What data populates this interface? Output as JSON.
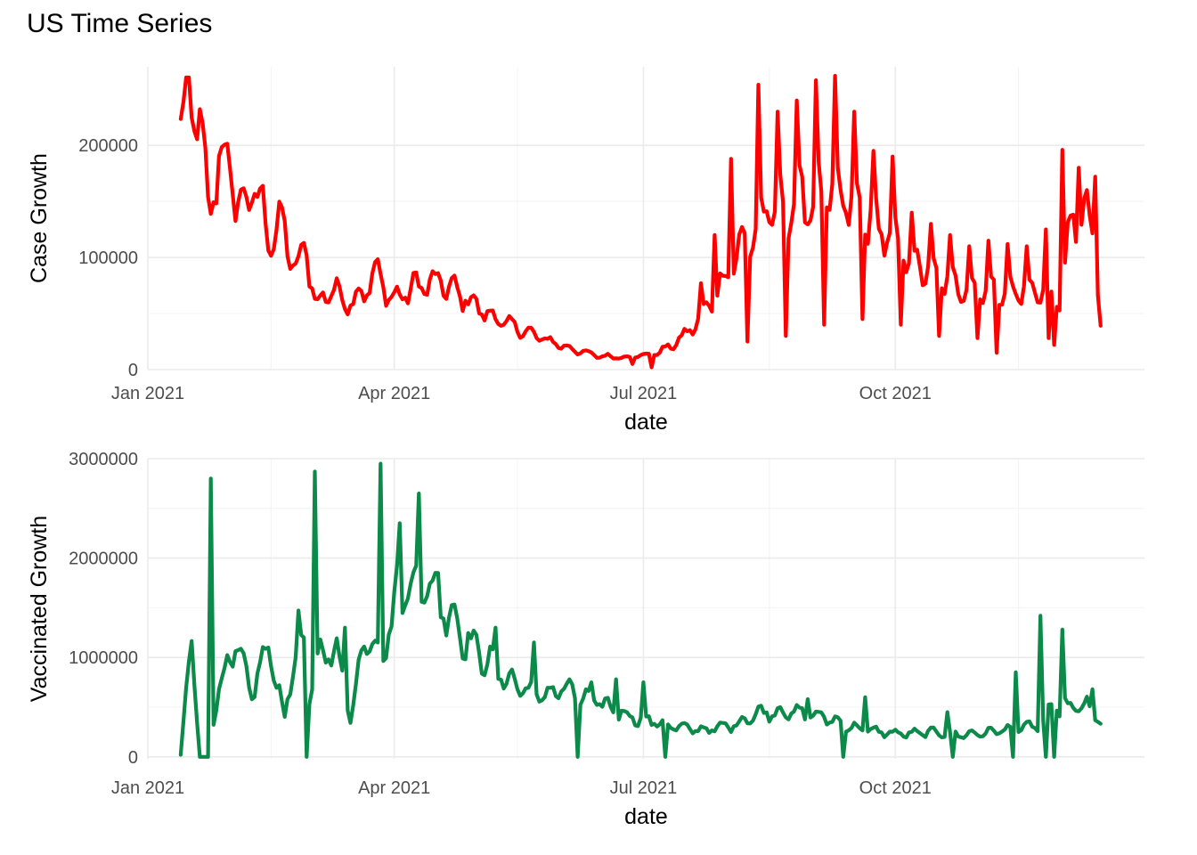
{
  "title": "US Time Series",
  "colors": {
    "cases": "#ff0000",
    "vaccinated": "#0b8a4a",
    "grid": "#ebebeb"
  },
  "chart_data": [
    {
      "type": "line",
      "name": "cases",
      "xlabel": "date",
      "ylabel": "Case Growth",
      "x_start": "2021-01-13",
      "x_end": "2021-12-15",
      "xlim": [
        "2021-01-01",
        "2021-12-31"
      ],
      "x_ticks": [
        "Jan 2021",
        "Apr 2021",
        "Jul 2021",
        "Oct 2021"
      ],
      "ylim": [
        0,
        270000
      ],
      "y_ticks": [
        0,
        100000,
        200000
      ],
      "y_tick_labels": [
        "0",
        "100000",
        "200000"
      ],
      "grid": true,
      "anchors": [
        [
          "2021-01-13",
          218000
        ],
        [
          "2021-01-17",
          232000
        ],
        [
          "2021-01-19",
          245000
        ],
        [
          "2021-01-23",
          140000
        ],
        [
          "2021-01-27",
          188000
        ],
        [
          "2021-01-31",
          180000
        ],
        [
          "2021-02-04",
          140000
        ],
        [
          "2021-02-09",
          165000
        ],
        [
          "2021-02-14",
          120000
        ],
        [
          "2021-02-19",
          128000
        ],
        [
          "2021-02-24",
          90000
        ],
        [
          "2021-02-28",
          105000
        ],
        [
          "2021-03-04",
          55000
        ],
        [
          "2021-03-09",
          75000
        ],
        [
          "2021-03-14",
          60000
        ],
        [
          "2021-03-21",
          68000
        ],
        [
          "2021-03-25",
          86000
        ],
        [
          "2021-04-01",
          62000
        ],
        [
          "2021-04-09",
          75000
        ],
        [
          "2021-04-18",
          78000
        ],
        [
          "2021-04-27",
          64000
        ],
        [
          "2021-05-06",
          48000
        ],
        [
          "2021-05-15",
          38000
        ],
        [
          "2021-05-25",
          28000
        ],
        [
          "2021-06-05",
          18000
        ],
        [
          "2021-06-15",
          12000
        ],
        [
          "2021-06-25",
          11000
        ],
        [
          "2021-07-05",
          14000
        ],
        [
          "2021-07-12",
          22000
        ],
        [
          "2021-07-20",
          40000
        ],
        [
          "2021-07-28",
          70000
        ],
        [
          "2021-08-06",
          110000
        ],
        [
          "2021-08-15",
          140000
        ],
        [
          "2021-08-25",
          150000
        ],
        [
          "2021-09-05",
          155000
        ],
        [
          "2021-09-14",
          150000
        ],
        [
          "2021-09-24",
          130000
        ],
        [
          "2021-10-04",
          105000
        ],
        [
          "2021-10-14",
          85000
        ],
        [
          "2021-10-24",
          75000
        ],
        [
          "2021-11-03",
          72000
        ],
        [
          "2021-11-13",
          70000
        ],
        [
          "2021-11-23",
          72000
        ],
        [
          "2021-11-30",
          60000
        ],
        [
          "2021-12-05",
          140000
        ],
        [
          "2021-12-12",
          130000
        ],
        [
          "2021-12-15",
          38000
        ]
      ],
      "peaks": [
        [
          "2021-03-24",
          86000
        ],
        [
          "2021-07-22",
          77000
        ],
        [
          "2021-07-27",
          120000
        ],
        [
          "2021-08-02",
          188000
        ],
        [
          "2021-08-12",
          254000
        ],
        [
          "2021-08-19",
          230000
        ],
        [
          "2021-08-26",
          240000
        ],
        [
          "2021-09-02",
          258000
        ],
        [
          "2021-09-09",
          262000
        ],
        [
          "2021-09-16",
          230000
        ],
        [
          "2021-09-23",
          195000
        ],
        [
          "2021-09-30",
          190000
        ],
        [
          "2021-10-07",
          140000
        ],
        [
          "2021-10-14",
          130000
        ],
        [
          "2021-10-21",
          120000
        ],
        [
          "2021-10-28",
          110000
        ],
        [
          "2021-11-04",
          115000
        ],
        [
          "2021-11-11",
          112000
        ],
        [
          "2021-11-18",
          110000
        ],
        [
          "2021-11-25",
          125000
        ],
        [
          "2021-12-01",
          196000
        ],
        [
          "2021-12-07",
          180000
        ],
        [
          "2021-12-13",
          172000
        ]
      ],
      "troughs": [
        [
          "2021-06-27",
          5000
        ],
        [
          "2021-07-04",
          2000
        ],
        [
          "2021-08-08",
          25000
        ],
        [
          "2021-08-22",
          30000
        ],
        [
          "2021-09-05",
          40000
        ],
        [
          "2021-09-19",
          45000
        ],
        [
          "2021-10-03",
          40000
        ],
        [
          "2021-10-17",
          30000
        ],
        [
          "2021-10-31",
          28000
        ],
        [
          "2021-11-07",
          15000
        ],
        [
          "2021-11-26",
          28000
        ],
        [
          "2021-11-28",
          22000
        ]
      ]
    },
    {
      "type": "line",
      "name": "vaccinated",
      "xlabel": "date",
      "ylabel": "Vaccinated Growth",
      "x_start": "2021-01-13",
      "x_end": "2021-12-15",
      "xlim": [
        "2021-01-01",
        "2021-12-31"
      ],
      "x_ticks": [
        "Jan 2021",
        "Apr 2021",
        "Jul 2021",
        "Oct 2021"
      ],
      "ylim": [
        -20000,
        3000000
      ],
      "y_ticks": [
        0,
        1000000,
        2000000,
        3000000
      ],
      "y_tick_labels": [
        "0",
        "1000000",
        "2000000",
        "3000000"
      ],
      "grid": true,
      "anchors": [
        [
          "2021-01-13",
          20000
        ],
        [
          "2021-01-17",
          1200000
        ],
        [
          "2021-01-20",
          0
        ],
        [
          "2021-01-23",
          0
        ],
        [
          "2021-01-27",
          700000
        ],
        [
          "2021-02-02",
          1100000
        ],
        [
          "2021-02-08",
          650000
        ],
        [
          "2021-02-14",
          1100000
        ],
        [
          "2021-02-20",
          400000
        ],
        [
          "2021-02-25",
          1250000
        ],
        [
          "2021-03-01",
          600000
        ],
        [
          "2021-03-05",
          1000000
        ],
        [
          "2021-03-10",
          1150000
        ],
        [
          "2021-03-16",
          400000
        ],
        [
          "2021-03-22",
          1300000
        ],
        [
          "2021-03-27",
          1000000
        ],
        [
          "2021-04-02",
          1600000
        ],
        [
          "2021-04-08",
          1800000
        ],
        [
          "2021-04-14",
          1700000
        ],
        [
          "2021-04-20",
          1500000
        ],
        [
          "2021-04-27",
          1200000
        ],
        [
          "2021-05-04",
          1000000
        ],
        [
          "2021-05-11",
          800000
        ],
        [
          "2021-05-18",
          700000
        ],
        [
          "2021-05-25",
          600000
        ],
        [
          "2021-06-01",
          700000
        ],
        [
          "2021-06-08",
          600000
        ],
        [
          "2021-06-15",
          550000
        ],
        [
          "2021-06-22",
          450000
        ],
        [
          "2021-06-29",
          380000
        ],
        [
          "2021-07-06",
          350000
        ],
        [
          "2021-07-13",
          300000
        ],
        [
          "2021-07-23",
          270000
        ],
        [
          "2021-08-03",
          320000
        ],
        [
          "2021-08-13",
          450000
        ],
        [
          "2021-08-25",
          450000
        ],
        [
          "2021-09-05",
          400000
        ],
        [
          "2021-09-15",
          300000
        ],
        [
          "2021-09-25",
          250000
        ],
        [
          "2021-10-05",
          230000
        ],
        [
          "2021-10-15",
          250000
        ],
        [
          "2021-10-25",
          220000
        ],
        [
          "2021-11-05",
          250000
        ],
        [
          "2021-11-15",
          300000
        ],
        [
          "2021-11-22",
          300000
        ],
        [
          "2021-11-28",
          500000
        ],
        [
          "2021-12-04",
          500000
        ],
        [
          "2021-12-10",
          500000
        ],
        [
          "2021-12-15",
          350000
        ]
      ],
      "peaks": [
        [
          "2021-01-24",
          2800000
        ],
        [
          "2021-02-14",
          1100000
        ],
        [
          "2021-02-27",
          1200000
        ],
        [
          "2021-03-03",
          2870000
        ],
        [
          "2021-03-14",
          1300000
        ],
        [
          "2021-03-27",
          2950000
        ],
        [
          "2021-04-03",
          2350000
        ],
        [
          "2021-04-10",
          2650000
        ],
        [
          "2021-04-17",
          1850000
        ],
        [
          "2021-05-08",
          1300000
        ],
        [
          "2021-05-22",
          1150000
        ],
        [
          "2021-06-12",
          750000
        ],
        [
          "2021-06-21",
          780000
        ],
        [
          "2021-07-01",
          750000
        ],
        [
          "2021-08-30",
          580000
        ],
        [
          "2021-09-20",
          600000
        ],
        [
          "2021-10-20",
          450000
        ],
        [
          "2021-11-14",
          850000
        ],
        [
          "2021-11-23",
          1420000
        ],
        [
          "2021-12-01",
          1280000
        ],
        [
          "2021-12-12",
          680000
        ]
      ],
      "troughs": [
        [
          "2021-01-21",
          0
        ],
        [
          "2021-02-28",
          0
        ],
        [
          "2021-06-07",
          0
        ],
        [
          "2021-07-09",
          0
        ],
        [
          "2021-09-12",
          0
        ],
        [
          "2021-10-22",
          0
        ],
        [
          "2021-11-13",
          0
        ],
        [
          "2021-11-25",
          0
        ],
        [
          "2021-11-28",
          0
        ]
      ]
    }
  ]
}
